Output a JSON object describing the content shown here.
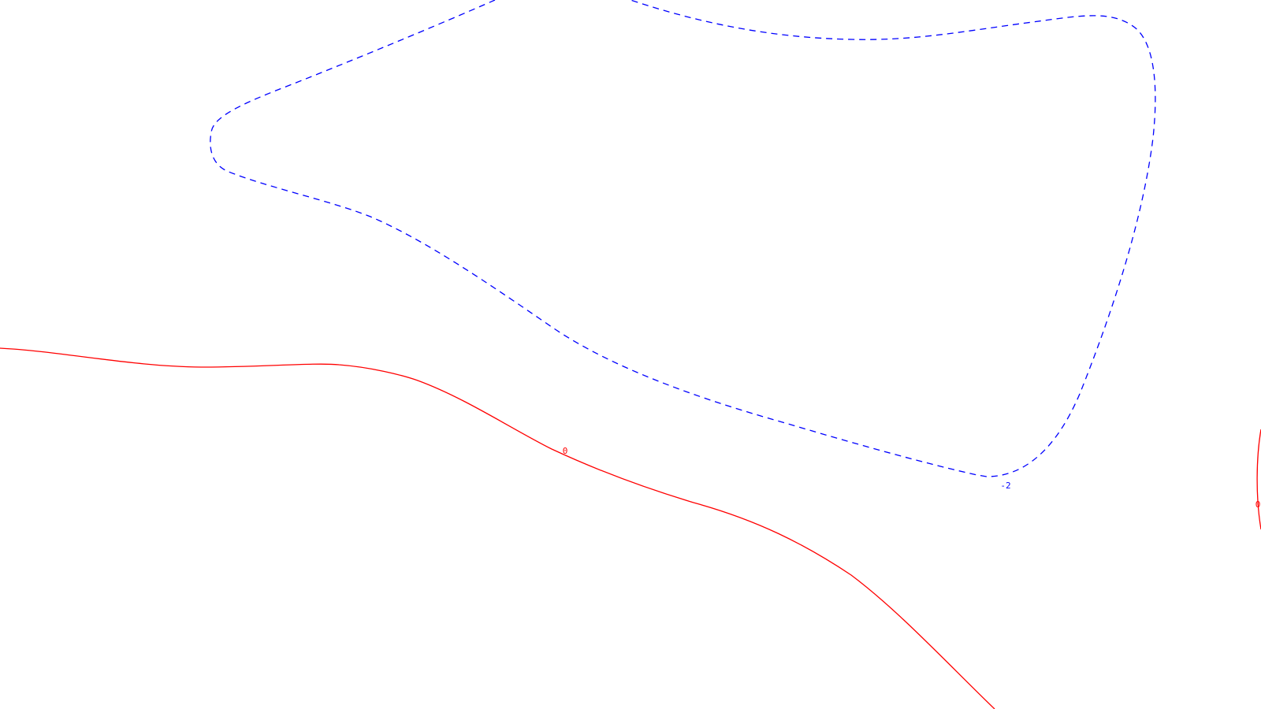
{
  "chart_data": {
    "type": "contour",
    "title": "",
    "xlabel": "",
    "ylabel": "",
    "grid": false,
    "legend": "none",
    "series": [
      {
        "name": "contour-level-0-main",
        "level_label": "0",
        "color": "#ff0000",
        "style": "solid"
      },
      {
        "name": "contour-level-0-edge",
        "level_label": "0",
        "color": "#ff0000",
        "style": "solid"
      },
      {
        "name": "contour-level-neg2",
        "level_label": "-2",
        "color": "#0000ff",
        "style": "dashed"
      }
    ]
  }
}
